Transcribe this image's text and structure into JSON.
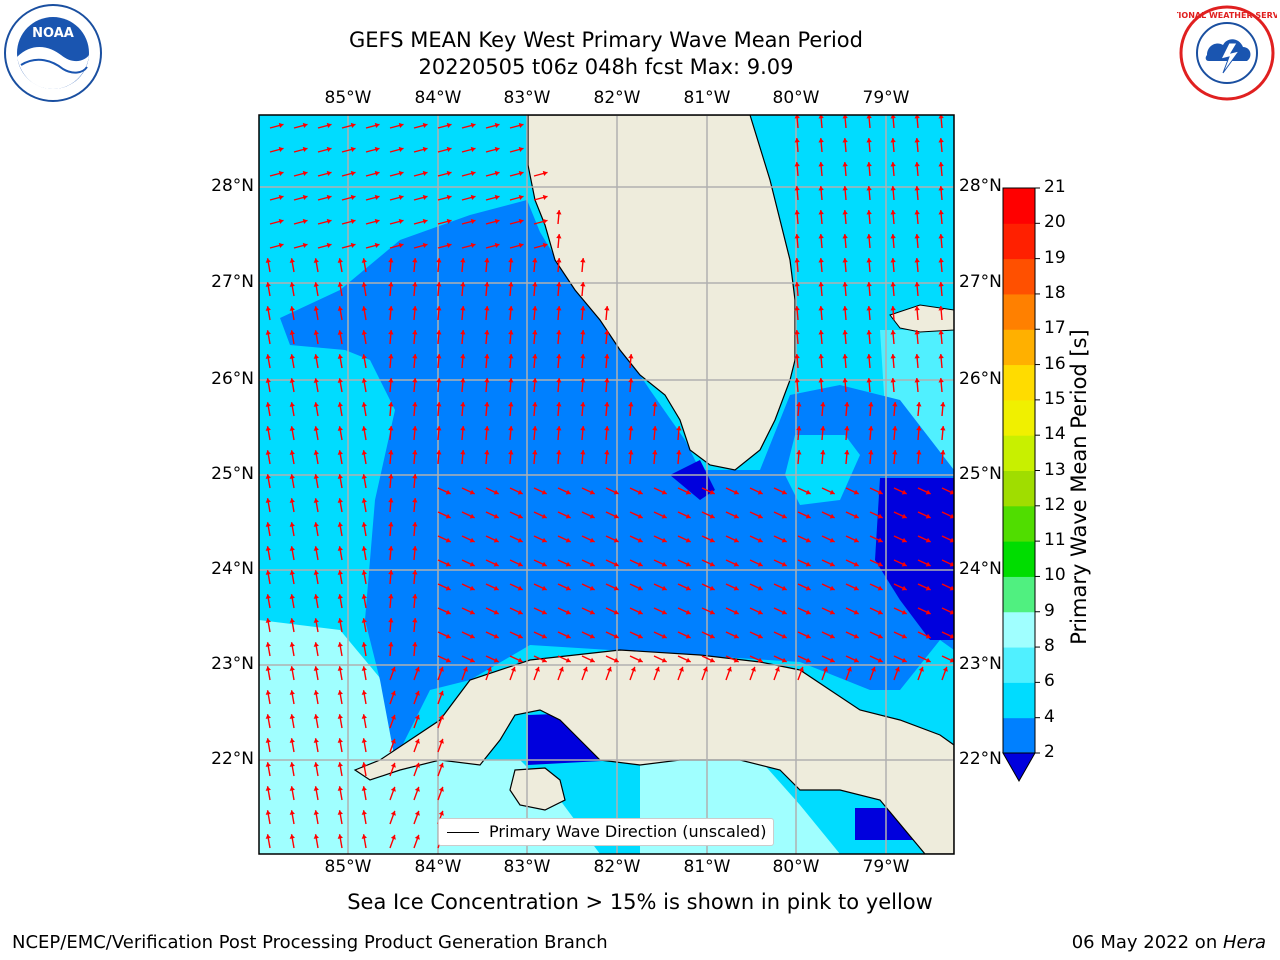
{
  "header": {
    "title_line1": "GEFS MEAN Key West Primary Wave Mean Period",
    "title_line2": "20220505 t06z 048h fcst   Max: 9.09"
  },
  "logos": {
    "noaa_text": "NOAA",
    "nws_text": "NATIONAL WEATHER SERVICE"
  },
  "map": {
    "lon_labels": [
      "85°W",
      "84°W",
      "83°W",
      "82°W",
      "81°W",
      "80°W",
      "79°W"
    ],
    "lat_labels": [
      "28°N",
      "27°N",
      "26°N",
      "25°N",
      "24°N",
      "23°N",
      "22°N"
    ],
    "legend_label": "Primary Wave Direction (unscaled)",
    "arrow_color": "#ff0000",
    "land_color": "#eeecdc"
  },
  "colorbar": {
    "label": "Primary Wave Mean Period [s]",
    "ticks": [
      "2",
      "4",
      "6",
      "8",
      "9",
      "10",
      "11",
      "12",
      "13",
      "14",
      "15",
      "16",
      "17",
      "18",
      "19",
      "20",
      "21"
    ],
    "colors": [
      "#0000dd",
      "#0080ff",
      "#00dcff",
      "#50f0ff",
      "#a0ffff",
      "#50f080",
      "#00dd00",
      "#50dd00",
      "#a0dd00",
      "#c8f000",
      "#f0f000",
      "#ffdc00",
      "#ffb000",
      "#ff8000",
      "#ff5000",
      "#ff2000",
      "#ff0000"
    ]
  },
  "notes": {
    "sea_ice": "Sea Ice Concentration > 15% is shown in pink to yellow"
  },
  "footer": {
    "left": "NCEP/EMC/Verification Post Processing Product Generation Branch",
    "right_date": "06 May 2022 on ",
    "right_host": "Hera"
  }
}
